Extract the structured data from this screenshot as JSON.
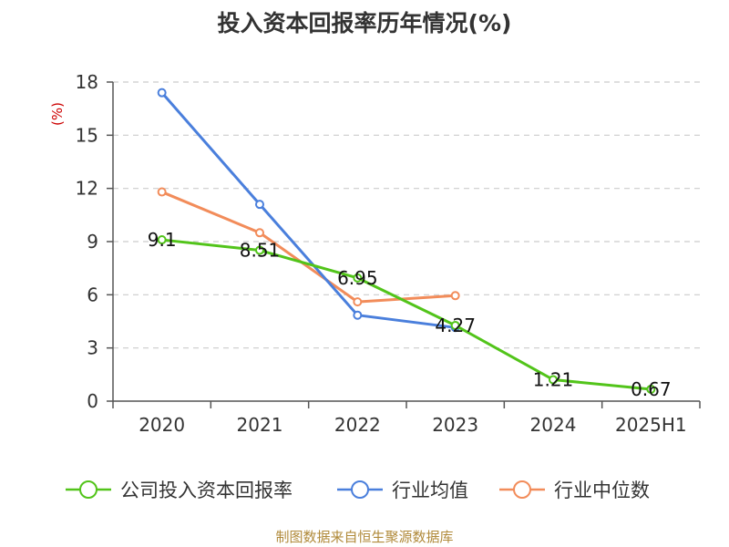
{
  "title": "投入资本回报率历年情况(%)",
  "source": "制图数据来自恒生聚源数据库",
  "chart_data": {
    "type": "line",
    "unit_label": "(%)",
    "categories": [
      "2020",
      "2021",
      "2022",
      "2023",
      "2024",
      "2025H1"
    ],
    "ylim": [
      0,
      18
    ],
    "yticks": [
      0,
      3,
      6,
      9,
      12,
      15,
      18
    ],
    "grid": true,
    "legend_position": "bottom",
    "series": [
      {
        "name": "公司投入资本回报率",
        "color": "#52c41a",
        "values": [
          9.1,
          8.51,
          6.95,
          4.27,
          1.21,
          0.67
        ],
        "show_labels": true
      },
      {
        "name": "行业均值",
        "color": "#4a7fdc",
        "values": [
          17.4,
          11.1,
          4.85,
          4.15,
          null,
          null
        ],
        "show_labels": false
      },
      {
        "name": "行业中位数",
        "color": "#f28c5a",
        "values": [
          11.8,
          9.5,
          5.6,
          5.95,
          null,
          null
        ],
        "show_labels": false
      }
    ]
  }
}
